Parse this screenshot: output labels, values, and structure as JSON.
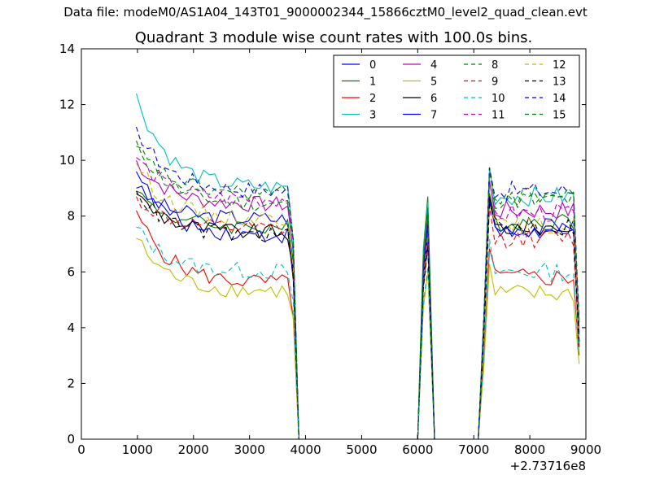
{
  "figure": {
    "suptitle": "Data file: modeM0/AS1A04_143T01_9000002344_15866cztM0_level2_quad_clean.evt",
    "title": "Quadrant 3 module wise count rates with 100.0s bins."
  },
  "chart_data": {
    "type": "line",
    "title": "Quadrant 3 module wise count rates with 100.0s bins.",
    "xlabel": "",
    "ylabel": "",
    "x_offset_label": "+2.73716e8",
    "xlim": [
      0,
      9000
    ],
    "ylim": [
      0,
      14
    ],
    "xticks": [
      0,
      1000,
      2000,
      3000,
      4000,
      5000,
      6000,
      7000,
      8000,
      9000
    ],
    "yticks": [
      0,
      2,
      4,
      6,
      8,
      10,
      12,
      14
    ],
    "grid": false,
    "legend_position": "top-right",
    "legend_columns": 4,
    "segment_breaks": {
      "orbit1": [
        980,
        3680
      ],
      "gap_drop": [
        3780,
        3880
      ],
      "zero_flat": [
        3880,
        6000
      ],
      "spike": [
        6000,
        6280
      ],
      "zero_flat2": [
        6300,
        7080
      ],
      "orbit2": [
        7180,
        8880
      ]
    },
    "series": [
      {
        "name": "0",
        "color": "#0000ff",
        "dash": "solid",
        "start": 9.0,
        "level1": 7.9,
        "spike": 7.8,
        "level2": 7.6,
        "end2": 3.8
      },
      {
        "name": "1",
        "color": "#008000",
        "dash": "solid",
        "start": 8.9,
        "level1": 7.6,
        "spike": 8.7,
        "level2": 7.8,
        "end2": 4.2
      },
      {
        "name": "2",
        "color": "#ff0000",
        "dash": "solid",
        "start": 8.2,
        "level1": 5.6,
        "spike": 7.0,
        "level2": 5.8,
        "end2": 3.0
      },
      {
        "name": "3",
        "color": "#00bfbf",
        "dash": "solid",
        "start": 12.4,
        "level1": 9.0,
        "spike": 8.5,
        "level2": 8.7,
        "end2": 3.5
      },
      {
        "name": "4",
        "color": "#bf00bf",
        "dash": "solid",
        "start": 10.0,
        "level1": 8.4,
        "spike": 8.0,
        "level2": 8.2,
        "end2": 4.0
      },
      {
        "name": "5",
        "color": "#bfbf00",
        "dash": "solid",
        "start": 7.2,
        "level1": 5.3,
        "spike": 6.0,
        "level2": 5.2,
        "end2": 2.7
      },
      {
        "name": "6",
        "color": "#000000",
        "dash": "solid",
        "start": 8.8,
        "level1": 7.4,
        "spike": 7.2,
        "level2": 7.6,
        "end2": 3.3
      },
      {
        "name": "7",
        "color": "#0000ff",
        "dash": "solid",
        "start": 9.6,
        "level1": 7.3,
        "spike": 7.5,
        "level2": 7.4,
        "end2": 3.7
      },
      {
        "name": "8",
        "color": "#008000",
        "dash": "dash",
        "start": 10.7,
        "level1": 8.4,
        "spike": 8.2,
        "level2": 8.6,
        "end2": 4.0
      },
      {
        "name": "9",
        "color": "#ff0000",
        "dash": "dash",
        "start": 8.7,
        "level1": 7.5,
        "spike": 7.1,
        "level2": 7.2,
        "end2": 3.4
      },
      {
        "name": "10",
        "color": "#00bfbf",
        "dash": "dash",
        "start": 7.6,
        "level1": 6.0,
        "spike": 6.2,
        "level2": 6.0,
        "end2": 3.0
      },
      {
        "name": "11",
        "color": "#bf00bf",
        "dash": "dash",
        "start": 10.1,
        "level1": 8.6,
        "spike": 7.9,
        "level2": 8.1,
        "end2": 3.9
      },
      {
        "name": "12",
        "color": "#bfbf00",
        "dash": "dash",
        "start": 9.9,
        "level1": 7.9,
        "spike": 7.4,
        "level2": 7.6,
        "end2": 3.6
      },
      {
        "name": "13",
        "color": "#000000",
        "dash": "dash",
        "start": 8.9,
        "level1": 7.3,
        "spike": 6.9,
        "level2": 7.6,
        "end2": 3.5
      },
      {
        "name": "14",
        "color": "#0000ff",
        "dash": "dash",
        "start": 11.2,
        "level1": 8.9,
        "spike": 7.7,
        "level2": 8.9,
        "end2": 4.3
      },
      {
        "name": "15",
        "color": "#008000",
        "dash": "dash",
        "start": 10.5,
        "level1": 8.8,
        "spike": 8.3,
        "level2": 8.7,
        "end2": 4.1
      }
    ]
  }
}
